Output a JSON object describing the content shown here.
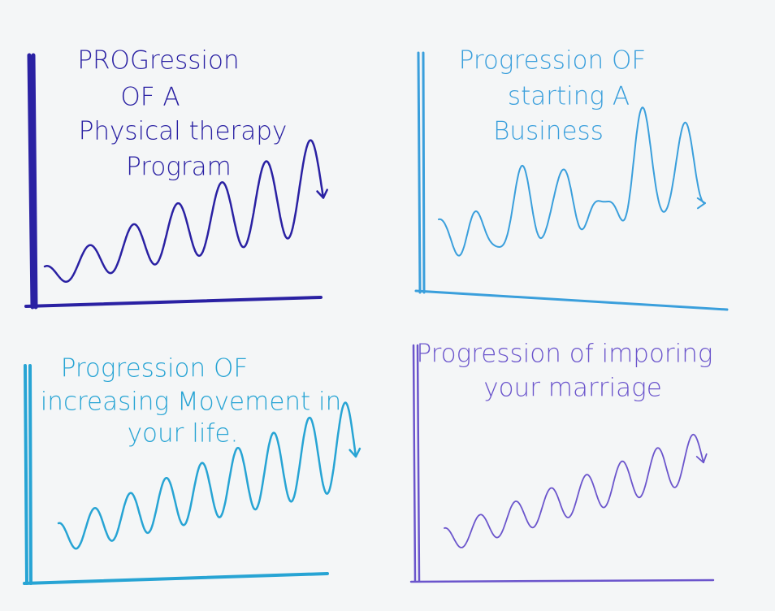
{
  "panels": [
    {
      "lines": [
        "PROGression",
        "OF A",
        "Physical therapy",
        "Program"
      ]
    },
    {
      "lines": [
        "Progression OF",
        "starting A",
        "Business"
      ]
    },
    {
      "lines": [
        "Progression OF",
        "increasing Movement in",
        "your life."
      ]
    },
    {
      "lines": [
        "Progression of imporing",
        "your marriage"
      ]
    }
  ]
}
